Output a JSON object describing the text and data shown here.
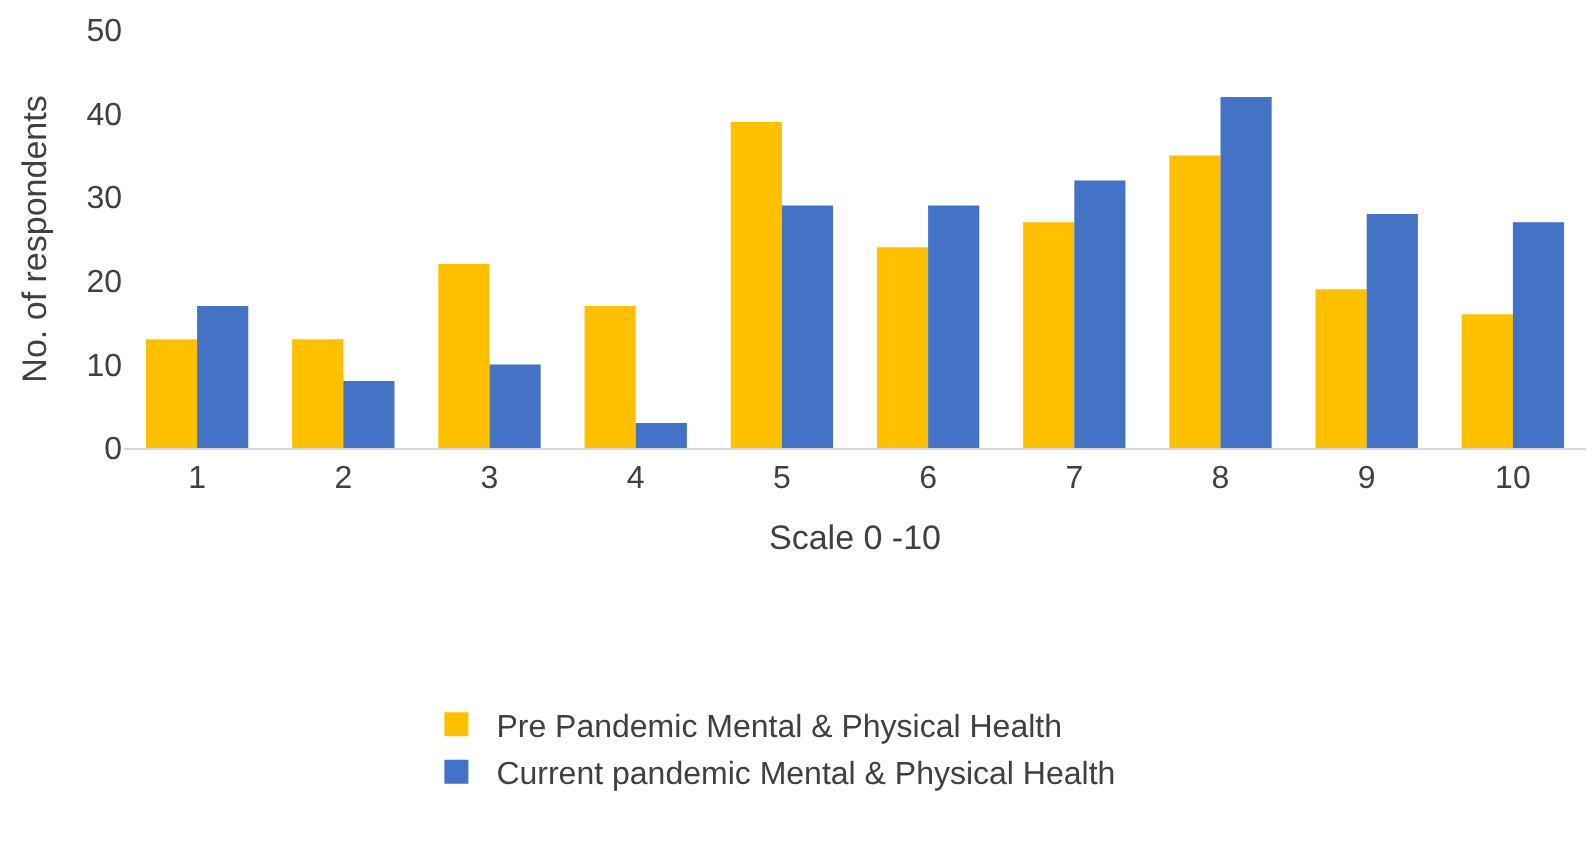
{
  "chart_data": {
    "type": "bar",
    "xlabel": "Scale 0 -10",
    "ylabel": "No. of respondents",
    "categories": [
      "1",
      "2",
      "3",
      "4",
      "5",
      "6",
      "7",
      "8",
      "9",
      "10"
    ],
    "series": [
      {
        "name": "Pre Pandemic Mental & Physical Health",
        "color": "#ffc000",
        "values": [
          13,
          13,
          22,
          17,
          39,
          24,
          27,
          35,
          19,
          16
        ]
      },
      {
        "name": "Current pandemic Mental & Physical Health",
        "color": "#4472c4",
        "values": [
          17,
          8,
          10,
          3,
          29,
          29,
          32,
          42,
          28,
          27
        ]
      }
    ],
    "ylim": [
      0,
      50
    ],
    "yticks": [
      0,
      10,
      20,
      30,
      40,
      50
    ],
    "grid": false,
    "legend": "bottom"
  }
}
